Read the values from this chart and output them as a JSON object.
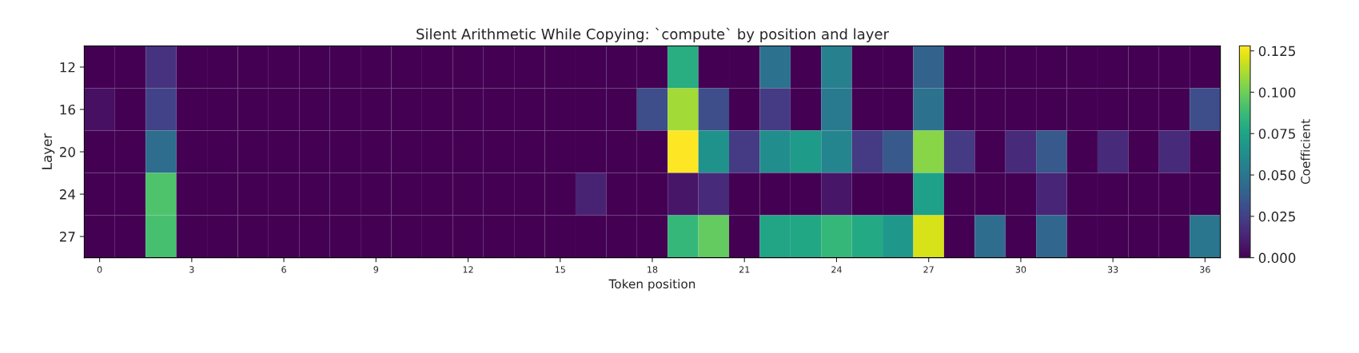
{
  "chart_data": {
    "type": "heatmap",
    "title": "Silent Arithmetic While Copying: `compute` by position and layer",
    "xlabel": "Token position",
    "ylabel": "Layer",
    "clabel": "Coefficient",
    "categories": [
      "0",
      null,
      null,
      "3",
      null,
      null,
      "6",
      null,
      null,
      "9",
      null,
      null,
      "12",
      null,
      null,
      "15",
      null,
      null,
      "18",
      null,
      null,
      "21",
      null,
      null,
      "24",
      null,
      null,
      "27",
      null,
      null,
      "30",
      null,
      null,
      "33",
      null,
      null,
      "36"
    ],
    "y_categories": [
      "12",
      "16",
      "20",
      "24",
      "27"
    ],
    "cells": [
      [
        0,
        0,
        0.018,
        0,
        0,
        0,
        0,
        0,
        0,
        0,
        0,
        0,
        0,
        0,
        0,
        0,
        0,
        0,
        0,
        0.08,
        0,
        0,
        0.048,
        0,
        0.055,
        0,
        0,
        0.04,
        0,
        0,
        0,
        0,
        0,
        0,
        0,
        0,
        0
      ],
      [
        0.005,
        0,
        0.025,
        0,
        0,
        0,
        0,
        0,
        0,
        0,
        0,
        0,
        0,
        0,
        0,
        0,
        0,
        0,
        0.03,
        0.11,
        0.03,
        0,
        0.022,
        0,
        0.052,
        0,
        0,
        0.048,
        0,
        0,
        0,
        0,
        0,
        0,
        0,
        0,
        0.03
      ],
      [
        0,
        0,
        0.045,
        0,
        0,
        0,
        0,
        0,
        0,
        0,
        0,
        0,
        0,
        0,
        0,
        0,
        0,
        0,
        0,
        0.128,
        0.065,
        0.022,
        0.062,
        0.07,
        0.058,
        0.022,
        0.035,
        0.105,
        0.022,
        0,
        0.015,
        0.035,
        0,
        0.015,
        0,
        0.015,
        0
      ],
      [
        0,
        0,
        0.092,
        0,
        0,
        0,
        0,
        0,
        0,
        0,
        0,
        0,
        0,
        0,
        0,
        0,
        0.012,
        0,
        0,
        0.007,
        0.015,
        0,
        0,
        0,
        0.007,
        0,
        0,
        0.072,
        0,
        0,
        0,
        0.013,
        0,
        0,
        0,
        0,
        0
      ],
      [
        0,
        0,
        0.09,
        0,
        0,
        0,
        0,
        0,
        0,
        0,
        0,
        0,
        0,
        0,
        0,
        0,
        0,
        0,
        0,
        0.085,
        0.097,
        0,
        0.075,
        0.076,
        0.085,
        0.077,
        0.068,
        0.12,
        0,
        0.045,
        0,
        0.042,
        0,
        0,
        0,
        0,
        0.05
      ]
    ],
    "clim": [
      0,
      0.128
    ],
    "cticks": [
      {
        "value": 0,
        "label": "0.000"
      },
      {
        "value": 0.025,
        "label": "0.025"
      },
      {
        "value": 0.05,
        "label": "0.050"
      },
      {
        "value": 0.075,
        "label": "0.075"
      },
      {
        "value": 0.1,
        "label": "0.100"
      },
      {
        "value": 0.125,
        "label": "0.125"
      }
    ]
  }
}
